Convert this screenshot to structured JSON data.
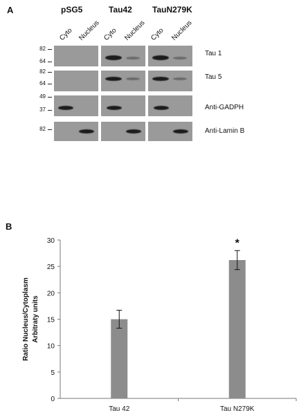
{
  "panel_a": {
    "letter": "A",
    "groups": [
      "pSG5",
      "Tau42",
      "TauN279K"
    ],
    "lane_labels": [
      "Cyto",
      "Nucleus"
    ],
    "blots": [
      {
        "antibody": "Tau 1",
        "markers": [
          "82",
          "64"
        ]
      },
      {
        "antibody": "Tau 5",
        "markers": [
          "82",
          "64"
        ]
      },
      {
        "antibody": "Anti-GADPH",
        "markers": [
          "49",
          "37"
        ]
      },
      {
        "antibody": "Anti-Lamin B",
        "markers": [
          "82"
        ]
      }
    ]
  },
  "panel_b": {
    "letter": "B"
  },
  "chart_data": {
    "type": "bar",
    "categories": [
      "Tau 42",
      "Tau N279K"
    ],
    "values": [
      15.0,
      26.2
    ],
    "errors": [
      1.7,
      1.8
    ],
    "ylabel": "Ratio Nucleus/Cytoplasm",
    "ylabel2": "Arbitraty units",
    "ylim": [
      0,
      30
    ],
    "yticks": [
      "0",
      "5",
      "10",
      "15",
      "20",
      "25",
      "30"
    ],
    "significance_markers": [
      "",
      "*"
    ],
    "bar_color": "#8c8c8c",
    "grid": false
  }
}
